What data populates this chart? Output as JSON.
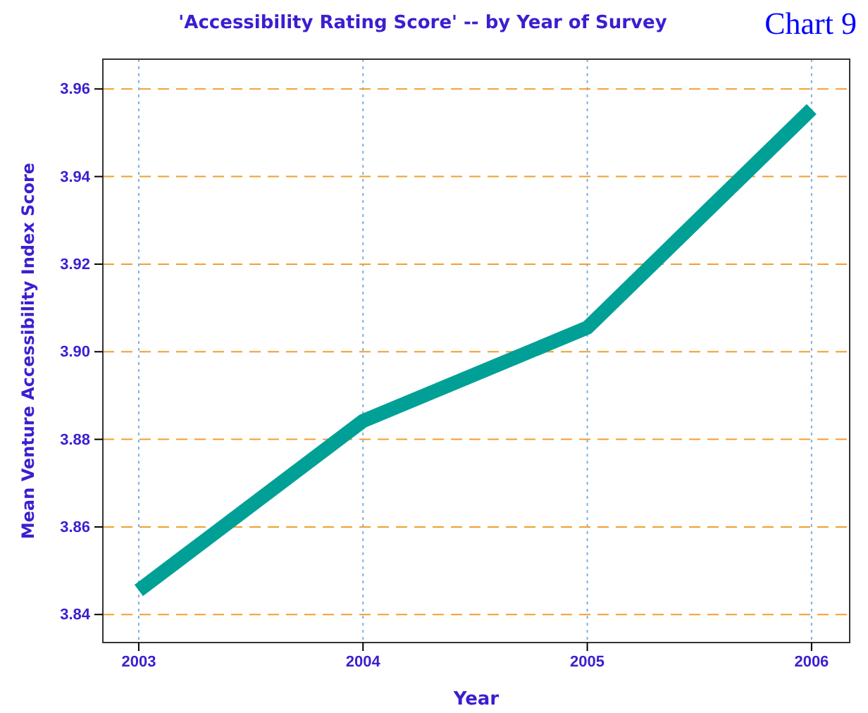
{
  "chart_data": {
    "type": "line",
    "title": "'Accessibility Rating Score' -- by Year of Survey",
    "xlabel": "Year",
    "ylabel": "Mean Venture Accessibility Index Score",
    "annotations": [
      "Chart 9"
    ],
    "x": [
      2003,
      2004,
      2005,
      2006
    ],
    "series": [
      {
        "color": "#00a096",
        "values": [
          3.8455,
          3.8842,
          3.9055,
          3.9554
        ]
      }
    ],
    "xlim": [
      2002.84,
      2006.17
    ],
    "xticks": [
      2003,
      2004,
      2005,
      2006
    ],
    "ylim": [
      3.8336,
      3.9668
    ],
    "yticks": [
      {
        "value": 3.84,
        "label": "3.84"
      },
      {
        "value": 3.86,
        "label": "3.86"
      },
      {
        "value": 3.88,
        "label": "3.88"
      },
      {
        "value": 3.9,
        "label": "3.90"
      },
      {
        "value": 3.92,
        "label": "3.92"
      },
      {
        "value": 3.94,
        "label": "3.94"
      },
      {
        "value": 3.96,
        "label": "3.96"
      }
    ],
    "grid": true,
    "marker": "none",
    "line_style": "solid"
  }
}
